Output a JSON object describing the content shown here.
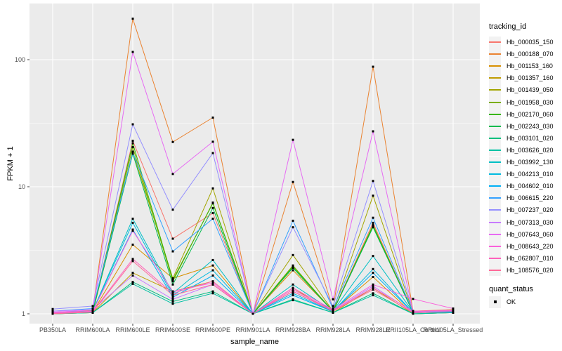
{
  "figure": {
    "background": "#FFFFFF",
    "panel_background": "#EBEBEB",
    "gridline_color": "#FFFFFF",
    "axis_text_color": "#4D4D4D",
    "tick_color": "#333333",
    "legend_key_background": "#F2F2F2"
  },
  "chart_data": {
    "type": "line",
    "title": "",
    "xlabel": "sample_name",
    "ylabel": "FPKM + 1",
    "y_scale": "log10",
    "y_ticks": [
      1,
      10,
      100
    ],
    "y_minor_ticks": [
      3.162,
      31.62
    ],
    "ylim": [
      0.95,
      240
    ],
    "grid": "major-and-minor-white-on-grey",
    "legend_position": "right",
    "point_marker": {
      "shape": "square",
      "color": "#000000",
      "size": 3
    },
    "categories": [
      "PB350LA",
      "RRIM600LA",
      "RRIM600LE",
      "RRIM600SE",
      "RRIM600PE",
      "RRIM901LA",
      "RRIM928BA",
      "RRIM928LA",
      "RRIM928LE",
      "RRII105LA_Control",
      "RRII105LA_Stressed"
    ],
    "series": [
      {
        "name": "Hb_000035_150",
        "color": "#F8766D",
        "values": [
          1.02,
          1.05,
          23,
          3.9,
          6.2,
          1.0,
          1.5,
          1.05,
          5.2,
          1.02,
          1.04
        ]
      },
      {
        "name": "Hb_000188_070",
        "color": "#EA8331",
        "values": [
          1.03,
          1.06,
          210,
          22.5,
          35,
          1.0,
          10.9,
          1.1,
          88,
          1.05,
          1.08
        ]
      },
      {
        "name": "Hb_001153_160",
        "color": "#D89000",
        "values": [
          1.0,
          1.03,
          3.5,
          1.9,
          2.4,
          1.0,
          2.2,
          1.05,
          1.95,
          1.0,
          1.02
        ]
      },
      {
        "name": "Hb_001357_160",
        "color": "#C09B00",
        "values": [
          1.0,
          1.02,
          2.1,
          1.5,
          1.8,
          1.0,
          1.6,
          1.02,
          1.6,
          1.0,
          1.02
        ]
      },
      {
        "name": "Hb_001439_050",
        "color": "#A3A500",
        "values": [
          1.0,
          1.02,
          18.9,
          1.9,
          9.7,
          1.0,
          2.9,
          1.05,
          8.5,
          1.02,
          1.03
        ]
      },
      {
        "name": "Hb_001958_030",
        "color": "#7CAE00",
        "values": [
          1.02,
          1.04,
          20.5,
          1.8,
          7.5,
          1.0,
          2.4,
          1.04,
          5.0,
          1.02,
          1.04
        ]
      },
      {
        "name": "Hb_002170_060",
        "color": "#39B600",
        "values": [
          1.02,
          1.05,
          22,
          1.85,
          7.4,
          1.0,
          2.35,
          1.05,
          4.9,
          1.03,
          1.06
        ]
      },
      {
        "name": "Hb_002243_030",
        "color": "#00BB4E",
        "values": [
          1.01,
          1.04,
          18.2,
          1.7,
          6.8,
          1.0,
          2.3,
          1.04,
          4.8,
          1.02,
          1.05
        ]
      },
      {
        "name": "Hb_003101_020",
        "color": "#00BF7D",
        "values": [
          1.0,
          1.02,
          1.78,
          1.25,
          1.5,
          1.0,
          1.3,
          1.02,
          1.45,
          1.0,
          1.02
        ]
      },
      {
        "name": "Hb_003626_020",
        "color": "#00C1A3",
        "values": [
          1.0,
          1.02,
          1.72,
          1.2,
          1.45,
          1.0,
          1.28,
          1.02,
          1.4,
          1.0,
          1.02
        ]
      },
      {
        "name": "Hb_003992_130",
        "color": "#00BFC4",
        "values": [
          1.02,
          1.05,
          5.6,
          1.45,
          2.65,
          1.0,
          1.7,
          1.05,
          2.85,
          1.03,
          1.04
        ]
      },
      {
        "name": "Hb_004213_010",
        "color": "#00BAE0",
        "values": [
          1.02,
          1.05,
          5.2,
          1.4,
          2.2,
          1.0,
          1.45,
          1.04,
          2.25,
          1.02,
          1.04
        ]
      },
      {
        "name": "Hb_004602_010",
        "color": "#00B0F6",
        "values": [
          1.02,
          1.05,
          4.6,
          1.35,
          2.0,
          1.0,
          1.4,
          1.04,
          2.1,
          1.02,
          1.03
        ]
      },
      {
        "name": "Hb_006615_220",
        "color": "#35A2FF",
        "values": [
          1.05,
          1.1,
          18.6,
          3.1,
          5.6,
          1.0,
          5.4,
          1.1,
          5.7,
          1.03,
          1.05
        ]
      },
      {
        "name": "Hb_007237_020",
        "color": "#9590FF",
        "values": [
          1.09,
          1.15,
          31,
          6.6,
          18.4,
          1.0,
          4.8,
          1.15,
          11.1,
          1.05,
          1.06
        ]
      },
      {
        "name": "Hb_007313_030",
        "color": "#C77CFF",
        "values": [
          1.05,
          1.08,
          2.0,
          1.3,
          1.7,
          1.0,
          1.5,
          1.06,
          1.65,
          1.03,
          1.04
        ]
      },
      {
        "name": "Hb_007643_060",
        "color": "#E76BF3",
        "values": [
          1.03,
          1.07,
          115,
          12.6,
          22.6,
          1.0,
          23.4,
          1.3,
          27.3,
          1.04,
          1.06
        ]
      },
      {
        "name": "Hb_008643_220",
        "color": "#FA62DB",
        "values": [
          1.02,
          1.05,
          4.5,
          1.5,
          1.75,
          1.0,
          1.6,
          1.08,
          1.7,
          1.31,
          1.1
        ]
      },
      {
        "name": "Hb_062807_010",
        "color": "#FF62BC",
        "values": [
          1.01,
          1.04,
          2.7,
          1.45,
          1.8,
          1.0,
          1.55,
          1.06,
          1.6,
          1.05,
          1.07
        ]
      },
      {
        "name": "Hb_108576_020",
        "color": "#FF6A98",
        "values": [
          1.0,
          1.03,
          2.6,
          1.4,
          1.7,
          1.0,
          1.5,
          1.05,
          1.55,
          1.02,
          1.04
        ]
      }
    ],
    "legend": {
      "tracking_title": "tracking_id",
      "quant_title": "quant_status",
      "quant_items": [
        {
          "label": "OK"
        }
      ]
    }
  }
}
